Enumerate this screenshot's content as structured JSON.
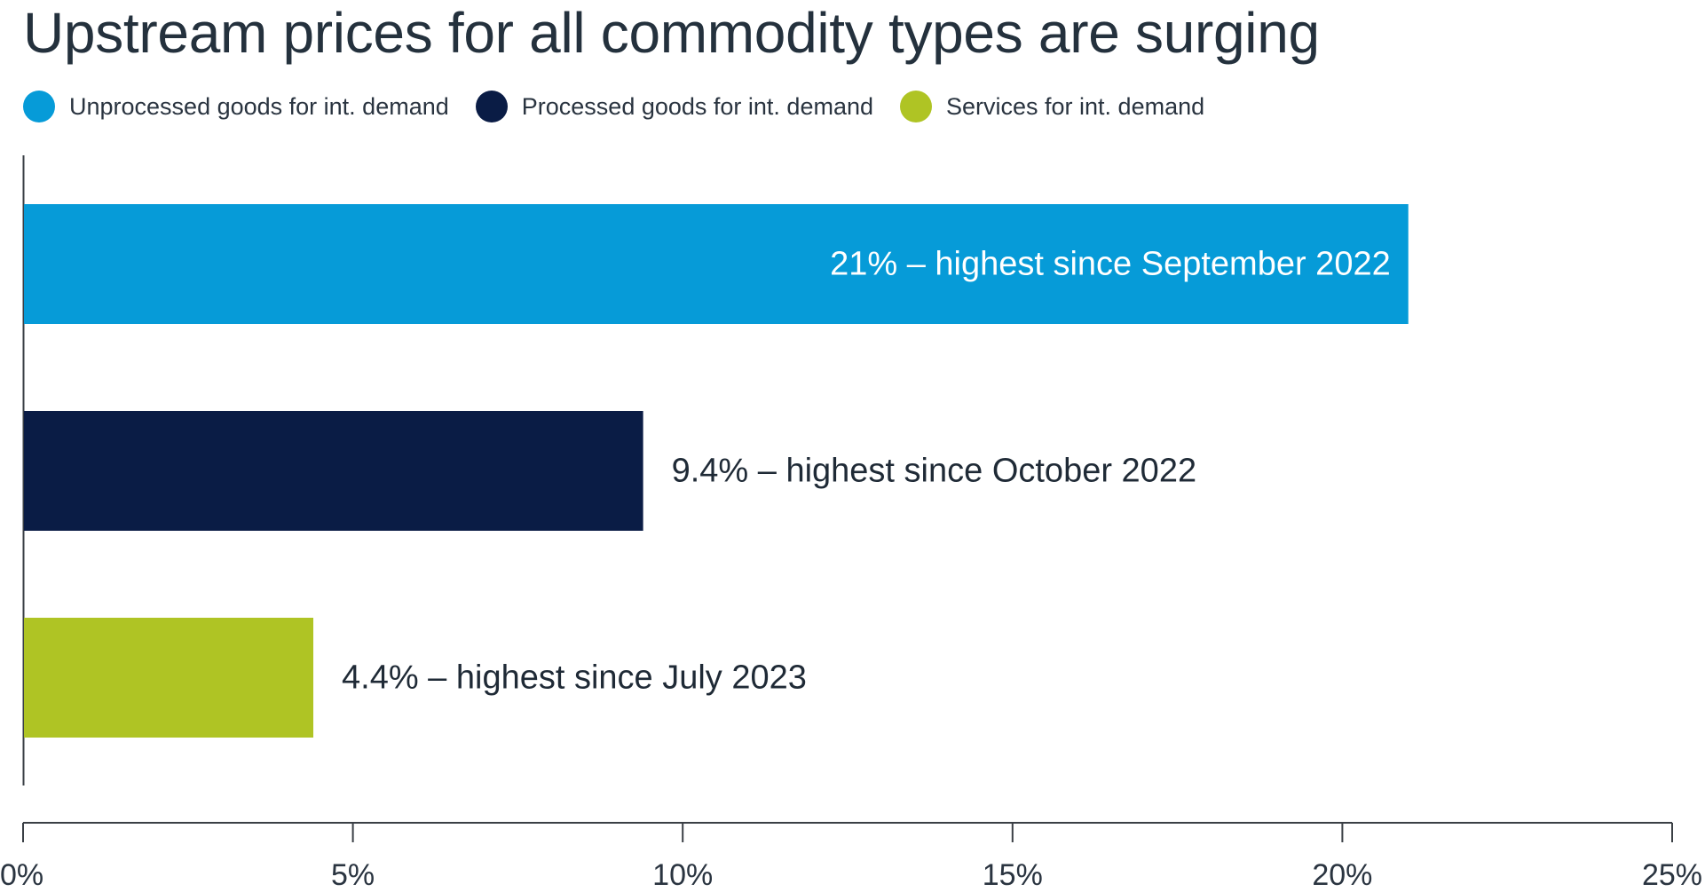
{
  "chart_data": {
    "type": "bar",
    "orientation": "horizontal",
    "title": "Upstream prices for all commodity types are surging",
    "categories": [
      "Unprocessed goods for int. demand",
      "Processed goods for int. demand",
      "Services for int. demand"
    ],
    "values": [
      21,
      9.4,
      4.4
    ],
    "colors": [
      "#069bd8",
      "#0a1c45",
      "#afc424"
    ],
    "data_labels": [
      "21% – highest since September 2022",
      "9.4% – highest since October 2022",
      "4.4% – highest since July 2023"
    ],
    "legend": {
      "placement": "top-left",
      "entries": [
        "Unprocessed goods for int. demand",
        "Processed goods for int. demand",
        "Services for int. demand"
      ]
    },
    "x_ticks": [
      0,
      5,
      10,
      15,
      20,
      25
    ],
    "x_tick_labels": [
      "0%",
      "5%",
      "10%",
      "15%",
      "20%",
      "25%"
    ],
    "xlim": [
      0,
      25
    ],
    "xlabel": "",
    "ylabel": "",
    "grid": false
  }
}
